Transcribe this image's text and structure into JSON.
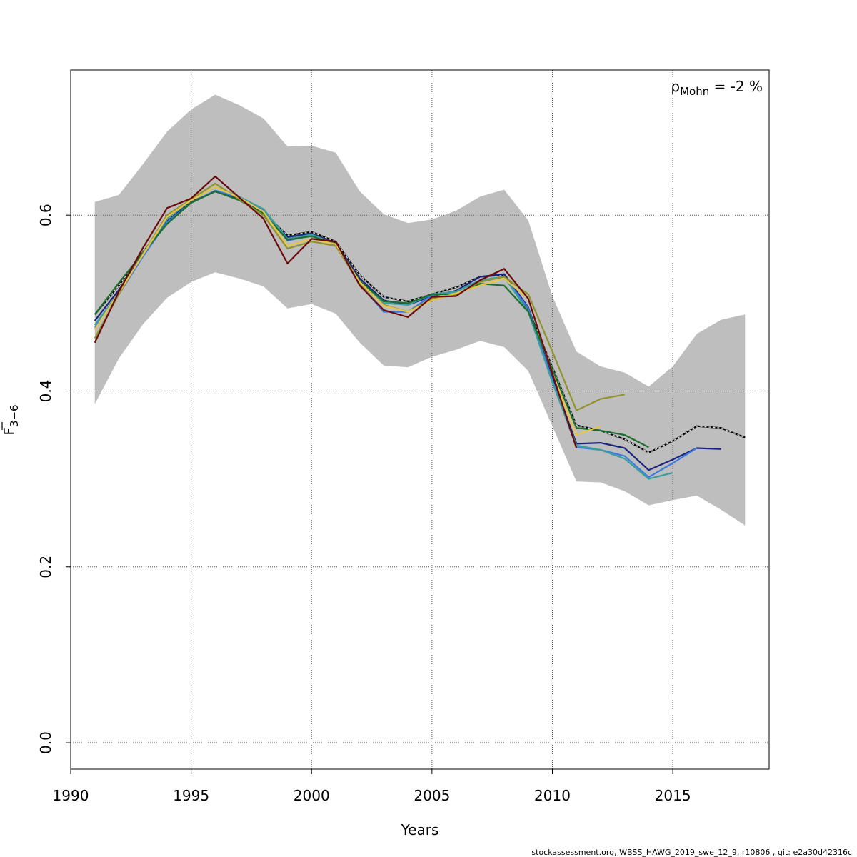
{
  "chart_data": {
    "type": "line",
    "title": "",
    "xlabel": "Years",
    "ylabel": {
      "base": "F",
      "sub": "3−6"
    },
    "xlim": [
      1990,
      2019
    ],
    "ylim": [
      -0.03,
      0.765
    ],
    "xticks": [
      1990,
      1995,
      2000,
      2005,
      2010,
      2015
    ],
    "xtick_labels": [
      "1990",
      "1995",
      "2000",
      "2005",
      "2010",
      "2015"
    ],
    "yticks": [
      0.0,
      0.2,
      0.4,
      0.6
    ],
    "ytick_labels": [
      "0.0",
      "0.2",
      "0.4",
      "0.6"
    ],
    "grid": true,
    "annotation": {
      "rho": "ρ",
      "sub": "Mohn",
      "text": " = -2 %"
    },
    "band": {
      "x": [
        1991,
        1992,
        1993,
        1994,
        1995,
        1996,
        1997,
        1998,
        1999,
        2000,
        2001,
        2002,
        2003,
        2004,
        2005,
        2006,
        2007,
        2008,
        2009,
        2010,
        2011,
        2012,
        2013,
        2014,
        2015,
        2016,
        2017,
        2018
      ],
      "upper": [
        0.615,
        0.623,
        0.658,
        0.695,
        0.72,
        0.737,
        0.725,
        0.71,
        0.678,
        0.679,
        0.671,
        0.627,
        0.601,
        0.591,
        0.595,
        0.605,
        0.621,
        0.629,
        0.594,
        0.508,
        0.445,
        0.428,
        0.421,
        0.405,
        0.428,
        0.465,
        0.481,
        0.487
      ],
      "lower": [
        0.385,
        0.437,
        0.476,
        0.506,
        0.524,
        0.535,
        0.528,
        0.519,
        0.494,
        0.499,
        0.488,
        0.455,
        0.429,
        0.427,
        0.439,
        0.447,
        0.457,
        0.45,
        0.423,
        0.36,
        0.297,
        0.296,
        0.286,
        0.27,
        0.276,
        0.281,
        0.265,
        0.247
      ]
    },
    "series": [
      {
        "color": "#000000",
        "dashed_overlay": true,
        "x": [
          1991,
          1992,
          1993,
          1994,
          1995,
          1996,
          1997,
          1998,
          1999,
          2000,
          2001,
          2002,
          2003,
          2004,
          2005,
          2006,
          2007,
          2008,
          2009,
          2010,
          2011,
          2012,
          2013,
          2014,
          2015,
          2016,
          2017,
          2018
        ],
        "values": [
          0.487,
          0.52,
          0.558,
          0.593,
          0.615,
          0.627,
          0.618,
          0.603,
          0.577,
          0.581,
          0.57,
          0.532,
          0.507,
          0.502,
          0.51,
          0.518,
          0.53,
          0.532,
          0.493,
          0.427,
          0.361,
          0.355,
          0.345,
          0.33,
          0.343,
          0.36,
          0.358,
          0.347
        ]
      },
      {
        "color": "#1a237e",
        "x": [
          1991,
          1992,
          1993,
          1994,
          1995,
          1996,
          1997,
          1998,
          1999,
          2000,
          2001,
          2002,
          2003,
          2004,
          2005,
          2006,
          2007,
          2008,
          2009,
          2010,
          2011,
          2012,
          2013,
          2014,
          2015,
          2016,
          2017
        ],
        "values": [
          0.48,
          0.515,
          0.555,
          0.593,
          0.614,
          0.627,
          0.618,
          0.604,
          0.575,
          0.579,
          0.568,
          0.528,
          0.503,
          0.498,
          0.508,
          0.514,
          0.53,
          0.533,
          0.495,
          0.415,
          0.34,
          0.341,
          0.335,
          0.31,
          0.322,
          0.335,
          0.334
        ]
      },
      {
        "color": "#3d7be0",
        "x": [
          1991,
          1992,
          1993,
          1994,
          1995,
          1996,
          1997,
          1998,
          1999,
          2000,
          2001,
          2002,
          2003,
          2004,
          2005,
          2006,
          2007,
          2008,
          2009,
          2010,
          2011,
          2012,
          2013,
          2014,
          2015,
          2016
        ],
        "values": [
          0.472,
          0.51,
          0.553,
          0.592,
          0.614,
          0.628,
          0.62,
          0.606,
          0.571,
          0.577,
          0.566,
          0.521,
          0.49,
          0.49,
          0.509,
          0.513,
          0.526,
          0.53,
          0.494,
          0.412,
          0.336,
          0.333,
          0.326,
          0.302,
          0.318,
          0.335
        ]
      },
      {
        "color": "#3a9e9c",
        "x": [
          1991,
          1992,
          1993,
          1994,
          1995,
          1996,
          1997,
          1998,
          1999,
          2000,
          2001,
          2002,
          2003,
          2004,
          2005,
          2006,
          2007,
          2008,
          2009,
          2010,
          2011,
          2012,
          2013,
          2014,
          2015
        ],
        "values": [
          0.475,
          0.512,
          0.555,
          0.596,
          0.617,
          0.632,
          0.621,
          0.607,
          0.573,
          0.578,
          0.567,
          0.525,
          0.5,
          0.498,
          0.51,
          0.513,
          0.526,
          0.53,
          0.49,
          0.41,
          0.338,
          0.333,
          0.323,
          0.3,
          0.307
        ]
      },
      {
        "color": "#1a6e2e",
        "x": [
          1991,
          1992,
          1993,
          1994,
          1995,
          1996,
          1997,
          1998,
          1999,
          2000,
          2001,
          2002,
          2003,
          2004,
          2005,
          2006,
          2007,
          2008,
          2009,
          2010,
          2011,
          2012,
          2013,
          2014
        ],
        "values": [
          0.487,
          0.523,
          0.557,
          0.59,
          0.614,
          0.627,
          0.617,
          0.602,
          0.572,
          0.576,
          0.567,
          0.525,
          0.502,
          0.5,
          0.51,
          0.51,
          0.522,
          0.52,
          0.49,
          0.425,
          0.358,
          0.355,
          0.35,
          0.336
        ]
      },
      {
        "color": "#8f932d",
        "x": [
          1991,
          1992,
          1993,
          1994,
          1995,
          1996,
          1997,
          1998,
          1999,
          2000,
          2001,
          2002,
          2003,
          2004,
          2005,
          2006,
          2007,
          2008,
          2009,
          2010,
          2011,
          2012,
          2013
        ],
        "values": [
          0.46,
          0.51,
          0.556,
          0.6,
          0.618,
          0.636,
          0.618,
          0.6,
          0.562,
          0.57,
          0.565,
          0.522,
          0.498,
          0.49,
          0.505,
          0.51,
          0.524,
          0.53,
          0.51,
          0.445,
          0.378,
          0.391,
          0.396
        ]
      },
      {
        "color": "#e8c547",
        "x": [
          1991,
          1992,
          1993,
          1994,
          1995,
          1996,
          1997,
          1998,
          1999,
          2000,
          2001,
          2002,
          2003,
          2004,
          2005,
          2006,
          2007,
          2008,
          2009,
          2010,
          2011,
          2012
        ],
        "values": [
          0.47,
          0.512,
          0.555,
          0.598,
          0.617,
          0.632,
          0.62,
          0.604,
          0.565,
          0.573,
          0.567,
          0.524,
          0.497,
          0.49,
          0.503,
          0.511,
          0.52,
          0.528,
          0.505,
          0.42,
          0.35,
          0.36
        ]
      },
      {
        "color": "#6b0a0a",
        "x": [
          1991,
          1992,
          1993,
          1994,
          1995,
          1996,
          1997,
          1998,
          1999,
          2000,
          2001,
          2002,
          2003,
          2004,
          2005,
          2006,
          2007,
          2008,
          2009,
          2010,
          2011
        ],
        "values": [
          0.455,
          0.513,
          0.563,
          0.608,
          0.619,
          0.644,
          0.62,
          0.596,
          0.545,
          0.573,
          0.57,
          0.52,
          0.492,
          0.484,
          0.507,
          0.508,
          0.526,
          0.539,
          0.505,
          0.42,
          0.335
        ]
      }
    ]
  },
  "footer": "stockassessment.org, WBSS_HAWG_2019_swe_12_9, r10806 , git: e2a30d42316c"
}
